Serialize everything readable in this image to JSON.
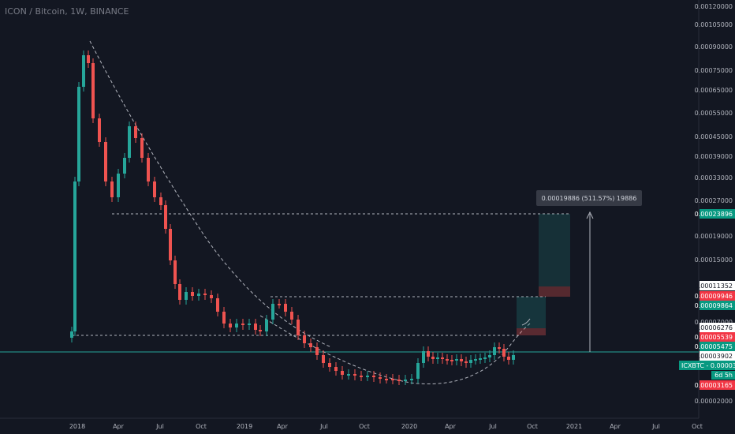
{
  "header": {
    "title": "ICON / Bitcoin, 1W, BINANCE"
  },
  "colors": {
    "background": "#131722",
    "up": "#26a69a",
    "down": "#ef5350",
    "label_red": "#f23645",
    "label_teal": "#089981",
    "measure_box": "#363a45"
  },
  "chart_data": {
    "type": "candlestick",
    "title": "ICON / Bitcoin, 1W, BINANCE",
    "symbol_label": "ICXBTC",
    "countdown": "6d 5h",
    "x_ticks": [
      "2018",
      "Apr",
      "Jul",
      "Oct",
      "2019",
      "Apr",
      "Jul",
      "Oct",
      "2020",
      "Apr",
      "Jul",
      "Oct",
      "2021",
      "Apr",
      "Jul",
      "Oct"
    ],
    "y_ticks": [
      "0.00120000",
      "0.00105000",
      "0.00090000",
      "0.00075000",
      "0.00065000",
      "0.00055000",
      "0.00045000",
      "0.00039000",
      "0.00033000",
      "0.00027000",
      "0.00019000",
      "0.00015000",
      "0.00007000",
      "0.00002000"
    ],
    "price_labels": [
      {
        "value": "0.00023896",
        "style": "teal"
      },
      {
        "value": "0.00011352",
        "style": "white"
      },
      {
        "value": "0.00009946",
        "style": "red"
      },
      {
        "value": "0.00009864",
        "style": "teal"
      },
      {
        "value": "0.00006276",
        "style": "white"
      },
      {
        "value": "0.00005539",
        "style": "red"
      },
      {
        "value": "0.00005475",
        "style": "teal"
      },
      {
        "value": "0.00003902",
        "style": "white"
      },
      {
        "value": "0.00003897",
        "style": "teal"
      },
      {
        "value": "0.00003165",
        "style": "red"
      }
    ],
    "measure": {
      "text": "0.00019886 (511.57%) 19886"
    },
    "key_levels": [
      "0.00023896",
      "0.00009946",
      "0.00005539",
      "0.00003897"
    ],
    "close_path": [
      [
        "2018",
        0.0003
      ],
      [
        "Apr",
        0.00033
      ],
      [
        "Jul",
        0.00016
      ],
      [
        "Oct",
        0.0001
      ],
      [
        "2019",
        6e-05
      ],
      [
        "Apr",
        0.0001
      ],
      [
        "Jul",
        4e-05
      ],
      [
        "Oct",
        3e-05
      ],
      [
        "2020",
        3e-05
      ],
      [
        "Apr",
        4e-05
      ],
      [
        "Jul",
        4e-05
      ]
    ],
    "grid": false
  }
}
